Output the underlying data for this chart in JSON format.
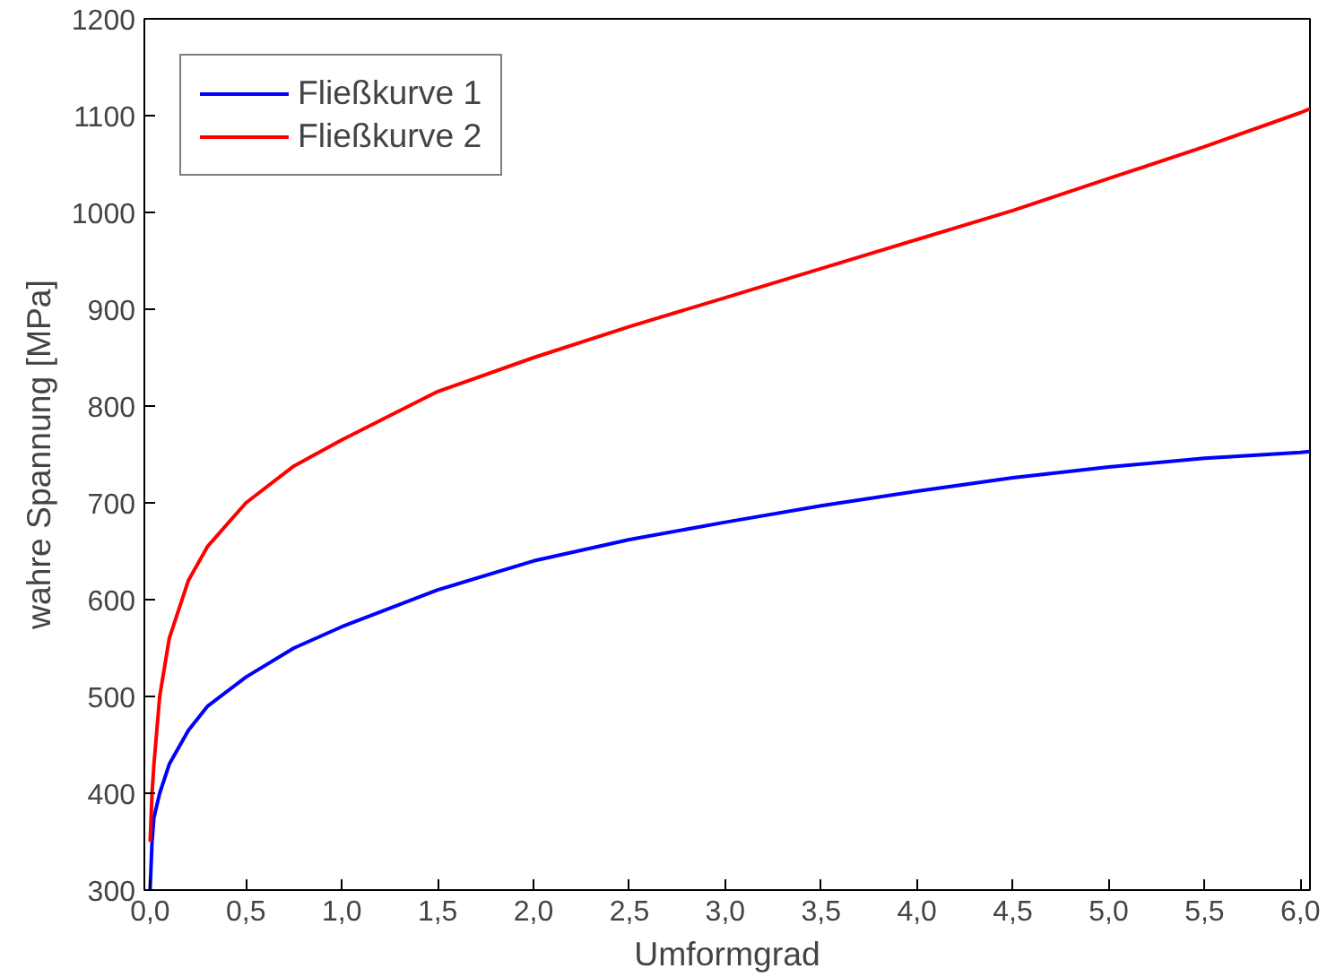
{
  "chart_data": {
    "type": "line",
    "xlabel": "Umformgrad",
    "ylabel": "wahre Spannung [MPa]",
    "xlim": [
      -0.03,
      6.05
    ],
    "ylim": [
      300,
      1200
    ],
    "xticks": [
      {
        "value": 0,
        "label": "0,0"
      },
      {
        "value": 0.5,
        "label": "0,5"
      },
      {
        "value": 1,
        "label": "1,0"
      },
      {
        "value": 1.5,
        "label": "1,5"
      },
      {
        "value": 2,
        "label": "2,0"
      },
      {
        "value": 2.5,
        "label": "2,5"
      },
      {
        "value": 3,
        "label": "3,0"
      },
      {
        "value": 3.5,
        "label": "3,5"
      },
      {
        "value": 4,
        "label": "4,0"
      },
      {
        "value": 4.5,
        "label": "4,5"
      },
      {
        "value": 5,
        "label": "5,0"
      },
      {
        "value": 5.5,
        "label": "5,5"
      },
      {
        "value": 6,
        "label": "6,0"
      }
    ],
    "yticks": [
      300,
      400,
      500,
      600,
      700,
      800,
      900,
      1000,
      1100,
      1200
    ],
    "grid": false,
    "legend": "top left",
    "line_style": "solid",
    "series": [
      {
        "name": "Fließkurve 1",
        "color": "#0000ff",
        "x": [
          0,
          0.01,
          0.02,
          0.05,
          0.1,
          0.2,
          0.3,
          0.5,
          0.75,
          1,
          1.5,
          2,
          2.5,
          3,
          3.5,
          4,
          4.5,
          5,
          5.5,
          6,
          6.05
        ],
        "values": [
          300,
          350,
          375,
          400,
          430,
          465,
          490,
          520,
          550,
          572,
          610,
          640,
          662,
          680,
          697,
          712,
          726,
          737,
          746,
          752,
          753
        ]
      },
      {
        "name": "Fließkurve 2",
        "color": "#ff0000",
        "x": [
          0,
          0.01,
          0.02,
          0.05,
          0.1,
          0.2,
          0.3,
          0.5,
          0.75,
          1,
          1.5,
          2,
          2.5,
          3,
          3.5,
          4,
          4.5,
          5,
          5.5,
          6,
          6.05
        ],
        "values": [
          350,
          400,
          430,
          500,
          560,
          620,
          655,
          700,
          738,
          765,
          815,
          850,
          882,
          912,
          942,
          972,
          1002,
          1035,
          1068,
          1103,
          1107
        ]
      }
    ]
  }
}
